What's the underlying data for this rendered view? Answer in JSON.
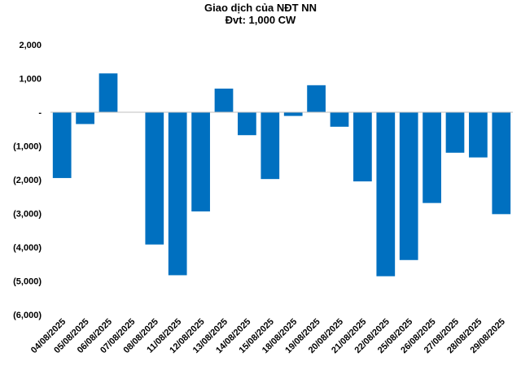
{
  "chart_data": {
    "type": "bar",
    "title": "Giao dịch của NĐT NN",
    "subtitle": "Đvt: 1,000 CW",
    "xlabel": "",
    "ylabel": "",
    "categories": [
      "04/08/2025",
      "05/08/2025",
      "06/08/2025",
      "07/08/2025",
      "08/08/2025",
      "11/08/2025",
      "12/08/2025",
      "13/08/2025",
      "14/08/2025",
      "15/08/2025",
      "18/08/2025",
      "19/08/2025",
      "20/08/2025",
      "21/08/2025",
      "22/08/2025",
      "25/08/2025",
      "26/08/2025",
      "27/08/2025",
      "28/08/2025",
      "29/08/2025"
    ],
    "values": [
      -1950,
      -350,
      1150,
      0,
      -3920,
      -4830,
      -2940,
      700,
      -680,
      -1980,
      -110,
      800,
      -430,
      -2050,
      -4860,
      -4380,
      -2690,
      -1200,
      -1340,
      -3020
    ],
    "ylim": [
      -6000,
      2000
    ],
    "yticks": [
      2000,
      1000,
      0,
      -1000,
      -2000,
      -3000,
      -4000,
      -5000,
      -6000
    ],
    "ytick_labels": [
      "2,000",
      "1,000",
      "-",
      "(1,000)",
      "(2,000)",
      "(3,000)",
      "(4,000)",
      "(5,000)",
      "(6,000)"
    ],
    "bar_color": "#0070C0",
    "grid": false,
    "legend": "none"
  }
}
